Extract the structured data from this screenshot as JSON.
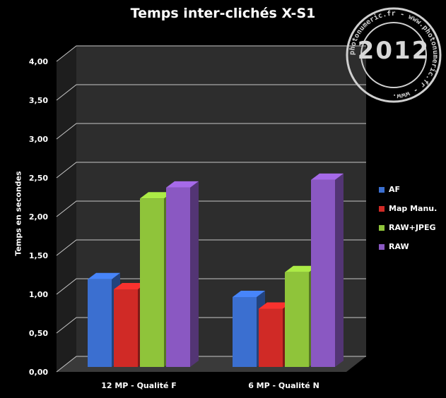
{
  "chart_data": {
    "type": "bar",
    "title": "Temps inter-clichés X-S1",
    "ylabel": "Temps en secondes",
    "xlabel": "",
    "ylim": [
      0,
      4
    ],
    "yticks": [
      "0,00",
      "0,50",
      "1,00",
      "1,50",
      "2,00",
      "2,50",
      "3,00",
      "3,50",
      "4,00"
    ],
    "categories": [
      "12 MP - Qualité F",
      "6 MP - Qualité N"
    ],
    "series": [
      {
        "name": "AF",
        "values": [
          1.13,
          0.9
        ],
        "color": "#3b6fd0"
      },
      {
        "name": "Map Manu.",
        "values": [
          1.0,
          0.75
        ],
        "color": "#d02a26"
      },
      {
        "name": "RAW+JPEG",
        "values": [
          2.17,
          1.22
        ],
        "color": "#8fc43a"
      },
      {
        "name": "RAW",
        "values": [
          2.31,
          2.41
        ],
        "color": "#8a58c2"
      }
    ],
    "grid": true,
    "legend_position": "right"
  },
  "stamp": {
    "year": "2012",
    "ring_text": "photonumeric.fr - www.photonumeric.fr - www."
  },
  "colors": {
    "background": "#000000",
    "plot_back_wall": "#2d2d2d",
    "plot_side_wall": "#1e1e1e",
    "floor": "#3a3a3a",
    "gridline": "#c8c8c8",
    "text": "#ffffff"
  }
}
